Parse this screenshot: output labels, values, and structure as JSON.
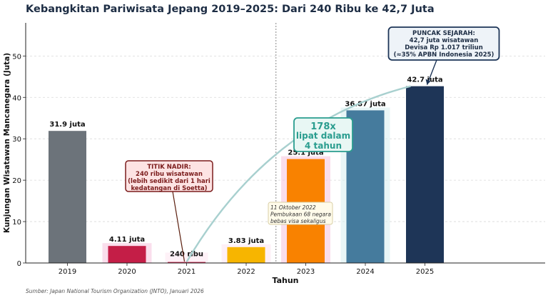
{
  "chart_data": {
    "type": "bar",
    "title": "Kebangkitan Pariwisata Jepang 2019–2025: Dari 240 Ribu ke 42,7 Juta",
    "xlabel": "Tahun",
    "ylabel": "Kunjungan Wisatawan Mancanegara (Juta)",
    "ylim": [
      0,
      58
    ],
    "yticks": [
      "0",
      "10",
      "20",
      "30",
      "40",
      "50"
    ],
    "grid": true,
    "categories": [
      "2019",
      "2020",
      "2021",
      "2022",
      "2023",
      "2024",
      "2025"
    ],
    "values": [
      31.9,
      4.11,
      0.24,
      3.83,
      25.1,
      36.87,
      42.7
    ],
    "value_labels": [
      "31.9 juta",
      "4.11 juta",
      "240 ribu",
      "3.83 juta",
      "25.1 juta",
      "36.87 juta",
      "42.7 juta"
    ],
    "bar_colors": [
      "#6c737a",
      "#c41e47",
      "#c41e47",
      "#f7b500",
      "#f98200",
      "#457b9d",
      "#1e3557"
    ],
    "divider_between": [
      "2022",
      "2023"
    ],
    "annotations": {
      "nadir": {
        "lines": [
          "TITIK NADIR:",
          "240 ribu wisatawan",
          "(lebih sedikit dari 1 hari",
          "kedatangan di Soetta)"
        ],
        "target": "2021"
      },
      "growth": {
        "lines": [
          "178x",
          "lipat dalam",
          "4 tahun"
        ]
      },
      "visa": {
        "lines": [
          "11 Oktober 2022",
          "Pembukaan 68 negara",
          "bebas visa sekaligus"
        ]
      },
      "peak": {
        "lines": [
          "PUNCAK SEJARAH:",
          "42,7 juta wisatawan",
          "Devisa Rp 1.017 triliun",
          "(≈35% APBN Indonesia 2025)"
        ],
        "target": "2025"
      }
    },
    "source": "Sumber: Japan National Tourism Organization (JNTO), Januari 2026"
  },
  "colors": {
    "title": "#1d2d44",
    "nadir_border": "#7b1c1c",
    "nadir_fill": "#fde3e3",
    "growth_accent": "#2a9d8f",
    "growth_fill": "#e8f7f4",
    "peak_border": "#1d3557",
    "peak_fill": "#eef3f8",
    "visa_border": "#d8cfa6",
    "visa_fill": "#fffbea",
    "trend": "#a8d0cf"
  }
}
